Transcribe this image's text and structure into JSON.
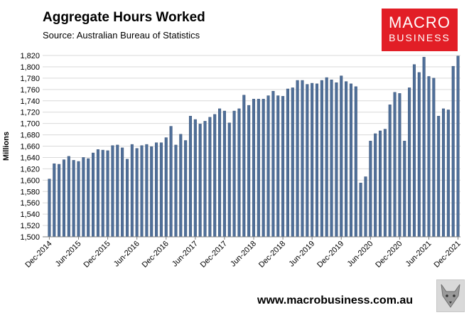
{
  "header": {
    "title": "Aggregate Hours Worked",
    "subtitle": "Source: Australian Bureau of Statistics"
  },
  "logo": {
    "line1": "MACRO",
    "line2": "BUSINESS",
    "color": "#e21e26"
  },
  "footer": {
    "url": "www.macrobusiness.com.au"
  },
  "colors": {
    "bar": "#4f6f99",
    "bar_edge": "#3b5478",
    "grid": "#d9d9d9"
  },
  "chart_data": {
    "type": "bar",
    "title": "Aggregate Hours Worked",
    "xlabel": "",
    "ylabel": "Millions",
    "ylim": [
      1500,
      1820
    ],
    "grid": true,
    "yticks": [
      1500,
      1520,
      1540,
      1560,
      1580,
      1600,
      1620,
      1640,
      1660,
      1680,
      1700,
      1720,
      1740,
      1760,
      1780,
      1800,
      1820
    ],
    "xtick_labels": [
      "Dec-2014",
      "Jun-2015",
      "Dec-2015",
      "Jun-2016",
      "Dec-2016",
      "Jun-2017",
      "Dec-2017",
      "Jun-2018",
      "Dec-2018",
      "Jun-2019",
      "Dec-2019",
      "Jun-2020",
      "Dec-2020",
      "Jun-2021",
      "Dec-2021"
    ],
    "categories": [
      "Dec-2014",
      "Jan-2015",
      "Feb-2015",
      "Mar-2015",
      "Apr-2015",
      "May-2015",
      "Jun-2015",
      "Jul-2015",
      "Aug-2015",
      "Sep-2015",
      "Oct-2015",
      "Nov-2015",
      "Dec-2015",
      "Jan-2016",
      "Feb-2016",
      "Mar-2016",
      "Apr-2016",
      "May-2016",
      "Jun-2016",
      "Jul-2016",
      "Aug-2016",
      "Sep-2016",
      "Oct-2016",
      "Nov-2016",
      "Dec-2016",
      "Jan-2017",
      "Feb-2017",
      "Mar-2017",
      "Apr-2017",
      "May-2017",
      "Jun-2017",
      "Jul-2017",
      "Aug-2017",
      "Sep-2017",
      "Oct-2017",
      "Nov-2017",
      "Dec-2017",
      "Jan-2018",
      "Feb-2018",
      "Mar-2018",
      "Apr-2018",
      "May-2018",
      "Jun-2018",
      "Jul-2018",
      "Aug-2018",
      "Sep-2018",
      "Oct-2018",
      "Nov-2018",
      "Dec-2018",
      "Jan-2019",
      "Feb-2019",
      "Mar-2019",
      "Apr-2019",
      "May-2019",
      "Jun-2019",
      "Jul-2019",
      "Aug-2019",
      "Sep-2019",
      "Oct-2019",
      "Nov-2019",
      "Dec-2019",
      "Jan-2020",
      "Feb-2020",
      "Mar-2020",
      "Apr-2020",
      "May-2020",
      "Jun-2020",
      "Jul-2020",
      "Aug-2020",
      "Sep-2020",
      "Oct-2020",
      "Nov-2020",
      "Dec-2020",
      "Jan-2021",
      "Feb-2021",
      "Mar-2021",
      "Apr-2021",
      "May-2021",
      "Jun-2021",
      "Jul-2021",
      "Aug-2021",
      "Sep-2021",
      "Oct-2021",
      "Nov-2021",
      "Dec-2021"
    ],
    "series": [
      {
        "values": [
          1602,
          1629,
          1628,
          1636,
          1642,
          1635,
          1633,
          1640,
          1638,
          1648,
          1654,
          1653,
          1652,
          1661,
          1662,
          1657,
          1637,
          1663,
          1656,
          1661,
          1663,
          1659,
          1666,
          1666,
          1675,
          1695,
          1662,
          1681,
          1670,
          1713,
          1707,
          1699,
          1704,
          1711,
          1716,
          1726,
          1722,
          1701,
          1722,
          1726,
          1750,
          1732,
          1743,
          1743,
          1743,
          1749,
          1757,
          1749,
          1748,
          1761,
          1763,
          1776,
          1776,
          1769,
          1771,
          1770,
          1776,
          1781,
          1777,
          1772,
          1784,
          1774,
          1770,
          1765,
          1595,
          1606,
          1669,
          1682,
          1687,
          1690,
          1733,
          1755,
          1753,
          1669,
          1763,
          1804,
          1790,
          1817,
          1783,
          1780,
          1713,
          1726,
          1724,
          1801,
          1819
        ]
      }
    ]
  }
}
